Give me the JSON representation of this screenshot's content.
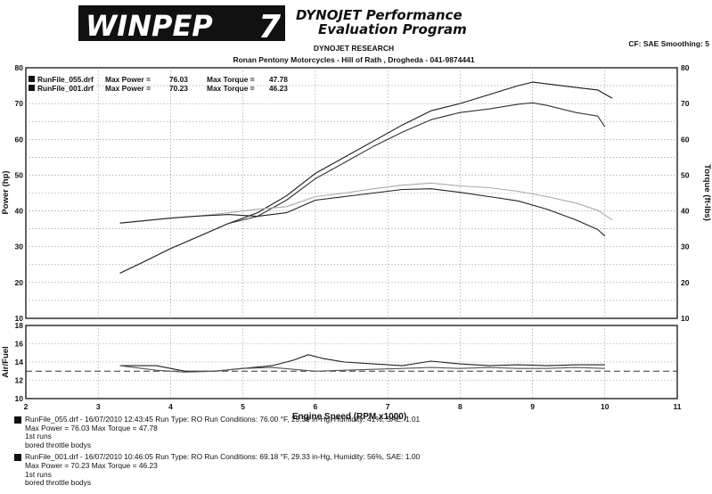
{
  "header": {
    "logo_text": "WINPEP",
    "logo_mark": "7",
    "program_line1": "DYNOJET Performance",
    "program_line2": "Evaluation Program",
    "research": "DYNOJET RESEARCH",
    "shop": "Ronan Pentony Motorcycles - Hill of Rath , Drogheda - 041-9874441",
    "settings": "CF: SAE  Smoothing: 5"
  },
  "chart_data": [
    {
      "type": "line",
      "title": "",
      "xlabel": "",
      "ylabel": "Power (hp)",
      "y2label": "Torque (ft-lbs)",
      "xlim": [
        2,
        11
      ],
      "ylim": [
        10,
        80
      ],
      "y2lim": [
        10,
        80
      ],
      "xticks": [
        2,
        3,
        4,
        5,
        6,
        7,
        8,
        9,
        10,
        11
      ],
      "yticks": [
        10,
        20,
        30,
        40,
        50,
        60,
        70,
        80
      ],
      "grid": true,
      "legend_position": "top-left",
      "legend": [
        {
          "run": "RunFile_055.drf",
          "power_label": "Max Power =",
          "power": "76.03",
          "torque_label": "Max Torque =",
          "torque": "47.78"
        },
        {
          "run": "RunFile_001.drf",
          "power_label": "Max Power =",
          "power": "70.23",
          "torque_label": "Max Torque =",
          "torque": "46.23"
        }
      ],
      "series": [
        {
          "name": "RunFile_055.drf Power",
          "color": "#1a1a1a",
          "x": [
            3.3,
            3.6,
            4.0,
            4.4,
            4.8,
            5.2,
            5.6,
            6.0,
            6.4,
            6.8,
            7.2,
            7.6,
            8.0,
            8.4,
            8.8,
            9.0,
            9.2,
            9.6,
            9.9,
            10.1
          ],
          "y": [
            22.6,
            25.5,
            29.5,
            33.0,
            36.5,
            39.5,
            44.2,
            50.5,
            55.0,
            59.5,
            64.0,
            68.0,
            70.0,
            72.5,
            75.0,
            76.0,
            75.5,
            74.5,
            73.8,
            71.5
          ]
        },
        {
          "name": "RunFile_001.drf Power",
          "color": "#333333",
          "x": [
            3.3,
            3.6,
            4.0,
            4.4,
            4.8,
            5.2,
            5.6,
            6.0,
            6.4,
            6.8,
            7.2,
            7.6,
            8.0,
            8.4,
            8.8,
            9.0,
            9.2,
            9.6,
            9.9,
            10.0
          ],
          "y": [
            22.6,
            25.5,
            29.5,
            33.0,
            36.5,
            38.5,
            43.0,
            49.0,
            53.5,
            58.0,
            62.0,
            65.5,
            67.5,
            68.5,
            69.8,
            70.2,
            69.5,
            67.5,
            66.5,
            63.5
          ]
        },
        {
          "name": "RunFile_055.drf Torque",
          "color": "#aaaaaa",
          "x": [
            3.3,
            3.6,
            4.0,
            4.4,
            4.8,
            5.2,
            5.6,
            6.0,
            6.4,
            6.8,
            7.2,
            7.6,
            8.0,
            8.4,
            8.8,
            9.2,
            9.6,
            9.9,
            10.1
          ],
          "y": [
            36.6,
            37.2,
            38.0,
            38.6,
            39.5,
            40.5,
            41.2,
            44.0,
            45.0,
            46.2,
            47.2,
            47.8,
            47.0,
            46.5,
            45.5,
            44.0,
            42.2,
            40.2,
            37.5
          ]
        },
        {
          "name": "RunFile_001.drf Torque",
          "color": "#222222",
          "x": [
            3.3,
            3.6,
            4.0,
            4.4,
            4.8,
            5.2,
            5.6,
            6.0,
            6.4,
            6.8,
            7.2,
            7.6,
            8.0,
            8.4,
            8.8,
            9.2,
            9.6,
            9.9,
            10.0
          ],
          "y": [
            36.6,
            37.2,
            38.0,
            38.6,
            39.0,
            38.5,
            39.5,
            43.0,
            44.0,
            45.0,
            46.0,
            46.2,
            45.2,
            44.0,
            42.8,
            40.5,
            37.5,
            34.8,
            33.0
          ]
        }
      ]
    },
    {
      "type": "line",
      "title": "",
      "xlabel": "Engine Speed (RPM x1000)",
      "ylabel": "Air/Fuel",
      "xlim": [
        2,
        11
      ],
      "ylim": [
        10,
        18
      ],
      "xticks": [
        2,
        3,
        4,
        5,
        6,
        7,
        8,
        9,
        10,
        11
      ],
      "yticks": [
        10,
        12,
        14,
        16,
        18
      ],
      "grid": true,
      "reference_line": 13.0,
      "series": [
        {
          "name": "RunFile_055.drf Air/Fuel",
          "color": "#222222",
          "x": [
            3.3,
            3.8,
            4.2,
            4.6,
            5.0,
            5.4,
            5.7,
            5.9,
            6.1,
            6.4,
            6.8,
            7.2,
            7.6,
            8.0,
            8.4,
            8.8,
            9.2,
            9.6,
            10.0
          ],
          "y": [
            13.6,
            13.6,
            13.0,
            13.0,
            13.3,
            13.6,
            14.2,
            14.8,
            14.4,
            14.0,
            13.8,
            13.6,
            14.1,
            13.8,
            13.6,
            13.7,
            13.6,
            13.7,
            13.7
          ]
        },
        {
          "name": "RunFile_001.drf Air/Fuel",
          "color": "#555555",
          "x": [
            3.3,
            3.8,
            4.2,
            4.6,
            5.0,
            5.4,
            5.7,
            6.0,
            6.4,
            6.8,
            7.2,
            7.6,
            8.0,
            8.4,
            8.8,
            9.2,
            9.6,
            10.0
          ],
          "y": [
            13.6,
            13.1,
            12.9,
            13.0,
            13.3,
            13.4,
            13.2,
            13.0,
            13.1,
            13.2,
            13.3,
            13.4,
            13.3,
            13.4,
            13.3,
            13.3,
            13.4,
            13.3
          ]
        }
      ]
    }
  ],
  "run_notes": [
    {
      "line1": "RunFile_055.drf - 16/07/2010 12:43:45  Run Type: RO  Run Conditions: 76.00 °F, 29.39 in-Hg,  Humidity:  41%, SAE: 1.01",
      "line2": "Max Power = 76.03  Max Torque = 47.78",
      "line3": "1st runs",
      "line4": "bored throttle bodys"
    },
    {
      "line1": "RunFile_001.drf - 16/07/2010 10:46:05  Run Type: RO  Run Conditions: 69.18 °F, 29.33 in-Hg,  Humidity:  56%, SAE: 1.00",
      "line2": "Max Power = 70.23  Max Torque = 46.23",
      "line3": "1st runs",
      "line4": "bored throttle bodys"
    }
  ]
}
